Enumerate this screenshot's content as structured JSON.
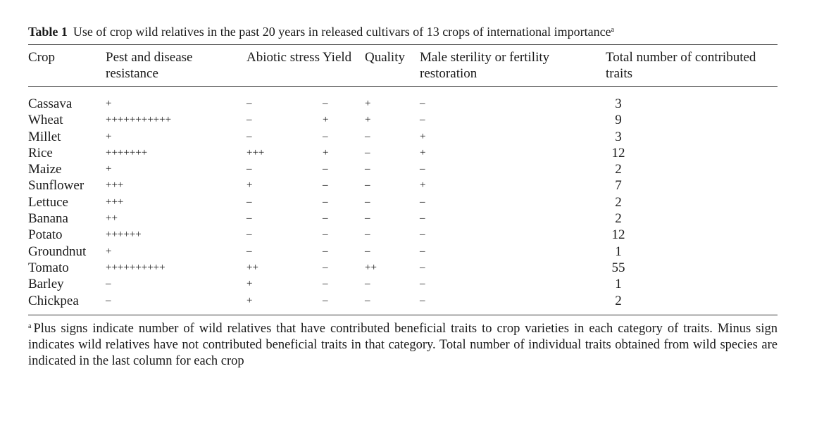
{
  "caption": {
    "label": "Table 1",
    "text": "Use of crop wild relatives in the past 20 years in released cultivars of 13 crops of international importance",
    "note_mark": "a"
  },
  "headers": {
    "crop": "Crop",
    "pest": "Pest and disease resistance",
    "abiotic": "Abiotic stress",
    "yield": "Yield",
    "quality": "Quality",
    "male": "Male sterility or fertility restoration",
    "total": "Total number of contributed traits"
  },
  "rows": [
    {
      "crop": "Cassava",
      "pest": "+",
      "abiotic": "–",
      "yield": "–",
      "quality": "+",
      "male": "–",
      "total": "3"
    },
    {
      "crop": "Wheat",
      "pest": "+++++++++++",
      "abiotic": "–",
      "yield": "+",
      "quality": "+",
      "male": "–",
      "total": "9"
    },
    {
      "crop": "Millet",
      "pest": "+",
      "abiotic": "–",
      "yield": "–",
      "quality": "–",
      "male": "+",
      "total": "3"
    },
    {
      "crop": "Rice",
      "pest": "+++++++",
      "abiotic": "+++",
      "yield": "+",
      "quality": "–",
      "male": "+",
      "total": "12"
    },
    {
      "crop": "Maize",
      "pest": "+",
      "abiotic": "–",
      "yield": "–",
      "quality": "–",
      "male": "–",
      "total": "2"
    },
    {
      "crop": "Sunflower",
      "pest": "+++",
      "abiotic": "+",
      "yield": "–",
      "quality": "–",
      "male": "+",
      "total": "7"
    },
    {
      "crop": "Lettuce",
      "pest": "+++",
      "abiotic": "–",
      "yield": "–",
      "quality": "–",
      "male": "–",
      "total": "2"
    },
    {
      "crop": "Banana",
      "pest": "++",
      "abiotic": "–",
      "yield": "–",
      "quality": "–",
      "male": "–",
      "total": "2"
    },
    {
      "crop": "Potato",
      "pest": "++++++",
      "abiotic": "–",
      "yield": "–",
      "quality": "–",
      "male": "–",
      "total": "12"
    },
    {
      "crop": "Groundnut",
      "pest": "+",
      "abiotic": "–",
      "yield": "–",
      "quality": "–",
      "male": "–",
      "total": "1"
    },
    {
      "crop": "Tomato",
      "pest": "++++++++++",
      "abiotic": "++",
      "yield": "–",
      "quality": "++",
      "male": "–",
      "total": "55"
    },
    {
      "crop": "Barley",
      "pest": "–",
      "abiotic": "+",
      "yield": "–",
      "quality": "–",
      "male": "–",
      "total": "1"
    },
    {
      "crop": "Chickpea",
      "pest": "–",
      "abiotic": "+",
      "yield": "–",
      "quality": "–",
      "male": "–",
      "total": "2"
    }
  ],
  "footnote": {
    "mark": "a",
    "text": "Plus signs indicate number of wild relatives that have contributed beneficial traits to crop varieties in each category of traits. Minus sign indicates wild relatives have not contributed beneficial traits in that category. Total number of individual traits obtained from wild species are indicated in the last column for each crop"
  }
}
